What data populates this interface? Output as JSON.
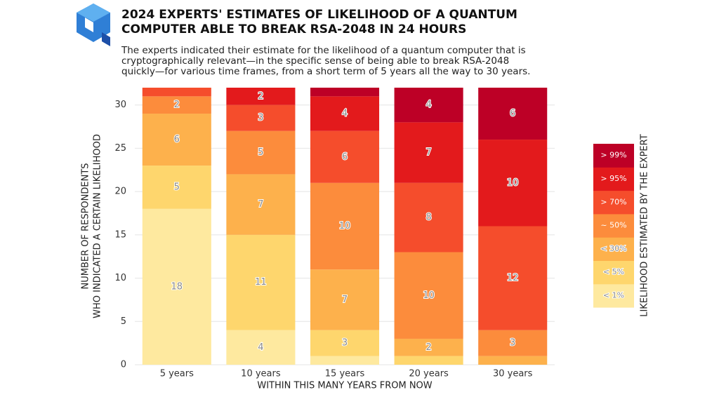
{
  "chart_data": {
    "type": "stacked_bar",
    "title": [
      "2024 EXPERTS' ESTIMATES OF LIKELIHOOD OF A QUANTUM",
      "COMPUTER ABLE TO BREAK RSA-2048 IN 24 HOURS"
    ],
    "subtitle": [
      "The experts indicated their estimate for the likelihood of a quantum computer that is",
      "cryptographically relevant—in the specific sense of being able to break RSA-2048",
      "quickly—for various time frames, from a short term of 5 years all the way to 30 years."
    ],
    "y_label": [
      "NUMBER OF RESPONDENTS",
      "WHO INDICATED A CERTAIN LIKELIHOOD"
    ],
    "x_label": "WITHIN THIS MANY YEARS FROM NOW",
    "legend_title": "LIKELIHOOD ESTIMATED BY THE EXPERT",
    "categories": [
      "5 years",
      "10 years",
      "15 years",
      "20 years",
      "30 years"
    ],
    "series": [
      {
        "name": "< 1%",
        "color": "#fee99f",
        "values": [
          18,
          4,
          1,
          0,
          0
        ]
      },
      {
        "name": "< 5%",
        "color": "#fed66d",
        "values": [
          5,
          11,
          3,
          1,
          0
        ]
      },
      {
        "name": "< 30%",
        "color": "#fdb14c",
        "values": [
          6,
          7,
          7,
          2,
          1
        ]
      },
      {
        "name": "~ 50%",
        "color": "#fc8c3c",
        "values": [
          2,
          5,
          10,
          10,
          3
        ]
      },
      {
        "name": "> 70%",
        "color": "#f54d2c",
        "values": [
          1,
          3,
          6,
          8,
          12
        ]
      },
      {
        "name": "> 95%",
        "color": "#e31a1c",
        "values": [
          0,
          2,
          4,
          7,
          10
        ]
      },
      {
        "name": "> 99%",
        "color": "#bd0026",
        "values": [
          0,
          0,
          1,
          4,
          6
        ]
      }
    ],
    "ylim": [
      0,
      32
    ],
    "yticks": [
      0,
      5,
      10,
      15,
      20,
      25,
      30
    ],
    "grid": true,
    "legend": "right"
  }
}
